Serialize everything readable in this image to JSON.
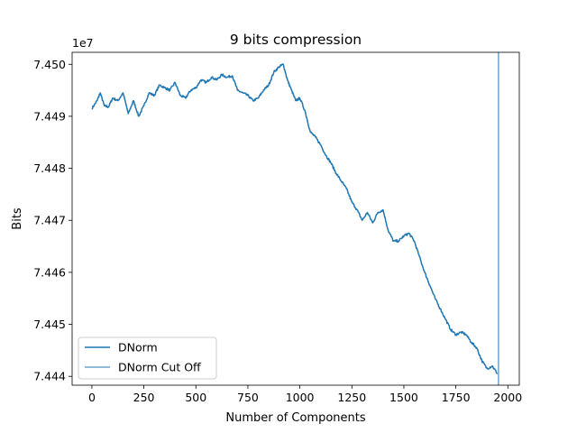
{
  "chart_data": {
    "type": "line",
    "title": "9 bits compression",
    "xlabel": "Number of Components",
    "ylabel": "Bits",
    "y_offset_label": "1e7",
    "xlim": [
      -95,
      2055
    ],
    "ylim": [
      7.44383,
      7.45023
    ],
    "x_ticks": [
      0,
      250,
      500,
      750,
      1000,
      1250,
      1500,
      1750,
      2000
    ],
    "x_tick_labels": [
      "0",
      "250",
      "500",
      "750",
      "1000",
      "1250",
      "1500",
      "1750",
      "2000"
    ],
    "y_ticks": [
      7.444,
      7.445,
      7.446,
      7.447,
      7.448,
      7.449,
      7.45
    ],
    "y_tick_labels": [
      "7.444",
      "7.445",
      "7.446",
      "7.447",
      "7.448",
      "7.449",
      "7.450"
    ],
    "grid": false,
    "legend_position": "lower-left",
    "series": [
      {
        "name": "DNorm",
        "color": "#1f77b4",
        "x": [
          0,
          25,
          40,
          60,
          80,
          100,
          125,
          150,
          175,
          200,
          225,
          250,
          275,
          300,
          325,
          350,
          375,
          400,
          425,
          450,
          475,
          500,
          525,
          550,
          575,
          600,
          625,
          650,
          675,
          700,
          725,
          750,
          775,
          800,
          825,
          850,
          875,
          900,
          920,
          940,
          960,
          980,
          1000,
          1025,
          1050,
          1075,
          1100,
          1125,
          1150,
          1175,
          1200,
          1225,
          1250,
          1275,
          1300,
          1325,
          1350,
          1375,
          1400,
          1425,
          1450,
          1475,
          1500,
          1525,
          1550,
          1575,
          1600,
          1625,
          1650,
          1675,
          1700,
          1725,
          1750,
          1775,
          1800,
          1825,
          1850,
          1875,
          1900,
          1925,
          1950
        ],
        "values": [
          7.44915,
          7.4493,
          7.44945,
          7.4492,
          7.44918,
          7.44935,
          7.4493,
          7.44945,
          7.44905,
          7.4493,
          7.449,
          7.4492,
          7.44945,
          7.4494,
          7.4496,
          7.44955,
          7.4495,
          7.44965,
          7.4494,
          7.44935,
          7.4495,
          7.44955,
          7.4497,
          7.44965,
          7.44975,
          7.4497,
          7.4498,
          7.44975,
          7.44978,
          7.4495,
          7.44945,
          7.4494,
          7.4493,
          7.44935,
          7.4495,
          7.4496,
          7.44985,
          7.44995,
          7.45,
          7.4497,
          7.4495,
          7.4493,
          7.44935,
          7.4491,
          7.4487,
          7.4486,
          7.44845,
          7.44825,
          7.4481,
          7.4479,
          7.44775,
          7.4476,
          7.44735,
          7.4472,
          7.447,
          7.44715,
          7.44695,
          7.44715,
          7.4472,
          7.4468,
          7.4466,
          7.4466,
          7.4467,
          7.44675,
          7.4466,
          7.4463,
          7.446,
          7.44575,
          7.4455,
          7.4453,
          7.4451,
          7.4449,
          7.4448,
          7.44485,
          7.4448,
          7.44465,
          7.44455,
          7.4443,
          7.44415,
          7.4442,
          7.44405
        ]
      },
      {
        "name": "DNorm Cut Off",
        "color": "#1f77b4",
        "type": "vertical-line",
        "x": 1955
      }
    ]
  }
}
